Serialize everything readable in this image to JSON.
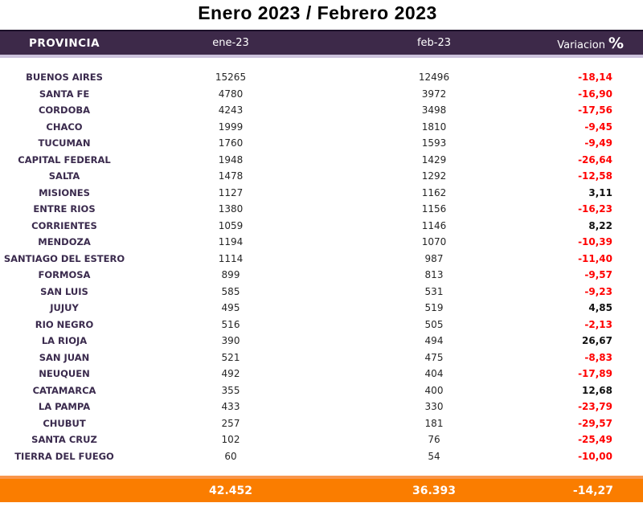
{
  "title": "Enero 2023 / Febrero 2023",
  "table": {
    "headers": {
      "provincia": "PROVINCIA",
      "ene": "ene-23",
      "feb": "feb-23",
      "variacion": "Variacion",
      "percent_symbol": "%"
    },
    "rows": [
      {
        "provincia": "BUENOS AIRES",
        "ene": "15265",
        "feb": "12496",
        "variacion": "-18,14"
      },
      {
        "provincia": "SANTA FE",
        "ene": "4780",
        "feb": "3972",
        "variacion": "-16,90"
      },
      {
        "provincia": "CORDOBA",
        "ene": "4243",
        "feb": "3498",
        "variacion": "-17,56"
      },
      {
        "provincia": "CHACO",
        "ene": "1999",
        "feb": "1810",
        "variacion": "-9,45"
      },
      {
        "provincia": "TUCUMAN",
        "ene": "1760",
        "feb": "1593",
        "variacion": "-9,49"
      },
      {
        "provincia": "CAPITAL FEDERAL",
        "ene": "1948",
        "feb": "1429",
        "variacion": "-26,64"
      },
      {
        "provincia": "SALTA",
        "ene": "1478",
        "feb": "1292",
        "variacion": "-12,58"
      },
      {
        "provincia": "MISIONES",
        "ene": "1127",
        "feb": "1162",
        "variacion": "3,11"
      },
      {
        "provincia": "ENTRE RIOS",
        "ene": "1380",
        "feb": "1156",
        "variacion": "-16,23"
      },
      {
        "provincia": "CORRIENTES",
        "ene": "1059",
        "feb": "1146",
        "variacion": "8,22"
      },
      {
        "provincia": "MENDOZA",
        "ene": "1194",
        "feb": "1070",
        "variacion": "-10,39"
      },
      {
        "provincia": "SANTIAGO DEL ESTERO",
        "ene": "1114",
        "feb": "987",
        "variacion": "-11,40"
      },
      {
        "provincia": "FORMOSA",
        "ene": "899",
        "feb": "813",
        "variacion": "-9,57"
      },
      {
        "provincia": "SAN LUIS",
        "ene": "585",
        "feb": "531",
        "variacion": "-9,23"
      },
      {
        "provincia": "JUJUY",
        "ene": "495",
        "feb": "519",
        "variacion": "4,85"
      },
      {
        "provincia": "RIO NEGRO",
        "ene": "516",
        "feb": "505",
        "variacion": "-2,13"
      },
      {
        "provincia": "LA RIOJA",
        "ene": "390",
        "feb": "494",
        "variacion": "26,67"
      },
      {
        "provincia": "SAN JUAN",
        "ene": "521",
        "feb": "475",
        "variacion": "-8,83"
      },
      {
        "provincia": "NEUQUEN",
        "ene": "492",
        "feb": "404",
        "variacion": "-17,89"
      },
      {
        "provincia": "CATAMARCA",
        "ene": "355",
        "feb": "400",
        "variacion": "12,68"
      },
      {
        "provincia": "LA PAMPA",
        "ene": "433",
        "feb": "330",
        "variacion": "-23,79"
      },
      {
        "provincia": "CHUBUT",
        "ene": "257",
        "feb": "181",
        "variacion": "-29,57"
      },
      {
        "provincia": "SANTA CRUZ",
        "ene": "102",
        "feb": "76",
        "variacion": "-25,49"
      },
      {
        "provincia": "TIERRA DEL FUEGO",
        "ene": "60",
        "feb": "54",
        "variacion": "-10,00"
      }
    ],
    "totals": {
      "ene": "42.452",
      "feb": "36.393",
      "variacion": "-14,27"
    }
  },
  "colors": {
    "header_bg": "#3D2949",
    "header_strip": "#CCC2DC",
    "totals_bg": "#FA7D00",
    "negative_text": "#FF0000",
    "positive_text": "#111111",
    "province_text": "#3A2A4D"
  }
}
